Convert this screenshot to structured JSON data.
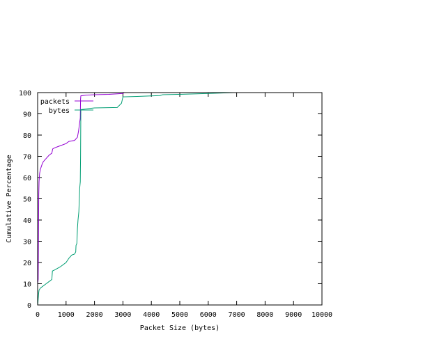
{
  "chart_data": {
    "type": "line",
    "title": "",
    "xlabel": "Packet Size (bytes)",
    "ylabel": "Cumulative Percentage",
    "xlim": [
      0,
      10000
    ],
    "ylim": [
      0,
      100
    ],
    "x_ticks": [
      0,
      1000,
      2000,
      3000,
      4000,
      5000,
      6000,
      7000,
      8000,
      9000,
      10000
    ],
    "y_ticks": [
      0,
      10,
      20,
      30,
      40,
      50,
      60,
      70,
      80,
      90,
      100
    ],
    "grid": false,
    "legend_position": "top-left",
    "series": [
      {
        "name": "packets",
        "color": "#9400d3",
        "points": [
          [
            0,
            10
          ],
          [
            20,
            12
          ],
          [
            30,
            30
          ],
          [
            40,
            52
          ],
          [
            50,
            58
          ],
          [
            70,
            62
          ],
          [
            100,
            64
          ],
          [
            150,
            66
          ],
          [
            200,
            67.5
          ],
          [
            300,
            69
          ],
          [
            400,
            70.5
          ],
          [
            500,
            71.5
          ],
          [
            530,
            73.5
          ],
          [
            600,
            74
          ],
          [
            700,
            74.5
          ],
          [
            800,
            75
          ],
          [
            1000,
            76
          ],
          [
            1100,
            77
          ],
          [
            1300,
            77.5
          ],
          [
            1400,
            79
          ],
          [
            1440,
            82
          ],
          [
            1480,
            86
          ],
          [
            1500,
            88
          ],
          [
            1510,
            97
          ],
          [
            1520,
            98.5
          ],
          [
            1700,
            98.8
          ],
          [
            2000,
            99
          ],
          [
            2500,
            99.2
          ],
          [
            3000,
            99.6
          ],
          [
            3050,
            100
          ],
          [
            3200,
            100
          ]
        ]
      },
      {
        "name": "bytes",
        "color": "#009e73",
        "points": [
          [
            0,
            0
          ],
          [
            10,
            1
          ],
          [
            20,
            3
          ],
          [
            40,
            6
          ],
          [
            50,
            7
          ],
          [
            100,
            8
          ],
          [
            200,
            9
          ],
          [
            300,
            10
          ],
          [
            400,
            11
          ],
          [
            500,
            12
          ],
          [
            520,
            16
          ],
          [
            600,
            16.5
          ],
          [
            800,
            18
          ],
          [
            1000,
            20
          ],
          [
            1100,
            22
          ],
          [
            1200,
            23.5
          ],
          [
            1300,
            24
          ],
          [
            1340,
            25
          ],
          [
            1350,
            28
          ],
          [
            1380,
            29
          ],
          [
            1400,
            36
          ],
          [
            1420,
            40
          ],
          [
            1450,
            44
          ],
          [
            1480,
            55
          ],
          [
            1500,
            58
          ],
          [
            1510,
            70
          ],
          [
            1520,
            92
          ],
          [
            1700,
            92.3
          ],
          [
            1800,
            92.5
          ],
          [
            2000,
            92.8
          ],
          [
            2800,
            93
          ],
          [
            2950,
            95
          ],
          [
            3000,
            98
          ],
          [
            3500,
            98.2
          ],
          [
            4300,
            98.6
          ],
          [
            4400,
            99
          ],
          [
            5000,
            99.2
          ],
          [
            6000,
            99.6
          ],
          [
            6900,
            100
          ]
        ]
      }
    ]
  }
}
